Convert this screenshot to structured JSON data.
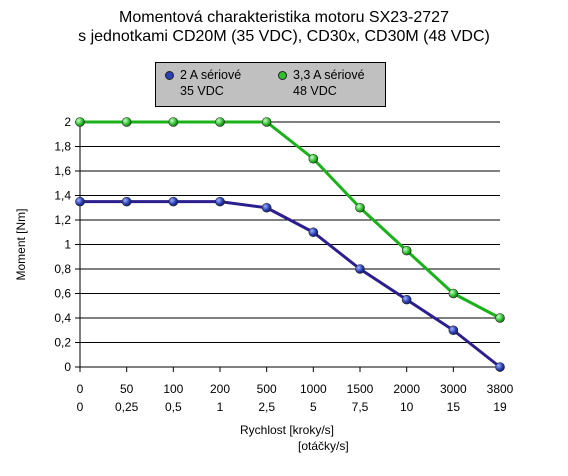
{
  "chart_data": {
    "type": "line",
    "title": "Momentová charakteristika motoru SX23-2727",
    "subtitle": "s jednotkami CD20M (35 VDC), CD30x, CD30M (48 VDC)",
    "xlabel": "Rychlost [kroky/s]",
    "xlabel2": "[otáčky/s]",
    "ylabel": "Moment [Nm]",
    "categories": [
      "0",
      "50",
      "100",
      "200",
      "500",
      "1000",
      "1500",
      "2000",
      "3000",
      "3800"
    ],
    "categories2": [
      "0",
      "0,25",
      "0,5",
      "1",
      "2,5",
      "5",
      "7,5",
      "10",
      "15",
      "19"
    ],
    "y_ticks": [
      "0",
      "0,2",
      "0,4",
      "0,6",
      "0,8",
      "1",
      "1,2",
      "1,4",
      "1,6",
      "1,8",
      "2"
    ],
    "ylim": [
      0,
      2
    ],
    "grid": true,
    "legend_position": "top",
    "series": [
      {
        "name": "2 A sériové",
        "name2": "35 VDC",
        "color": "#2b1f8f",
        "values": [
          1.35,
          1.35,
          1.35,
          1.35,
          1.3,
          1.1,
          0.8,
          0.55,
          0.3,
          0.0
        ]
      },
      {
        "name": "3,3 A sériové",
        "name2": "48 VDC",
        "color": "#19b219",
        "values": [
          2.0,
          2.0,
          2.0,
          2.0,
          2.0,
          1.7,
          1.3,
          0.95,
          0.6,
          0.4
        ]
      }
    ]
  },
  "colors": {
    "legend_bg": "#c0c0c0",
    "grid": "#000000",
    "series1": "#2b1f8f",
    "series2": "#19b219"
  }
}
